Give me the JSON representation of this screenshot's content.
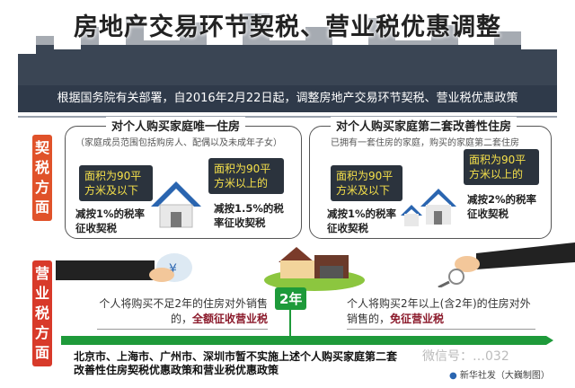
{
  "title": "房地产交易环节契税、营业税优惠调整",
  "banner": "根据国务院有关部署，自2016年2月22日起，调整房地产交易环节契税、营业税优惠政策",
  "deed_tax": {
    "label": [
      "契",
      "税",
      "方",
      "面"
    ],
    "first_home": {
      "heading": "对个人购买家庭唯一住房",
      "note": "（家庭成员范围包括购房人、配偶以及未成年子女）",
      "small": {
        "area": "面积为90平方米及以下",
        "rule": "减按1%的税率征收契税"
      },
      "large": {
        "area": "面积为90平方米以上的",
        "rule": "减按1.5%的税率征收契税"
      }
    },
    "second_home": {
      "heading": "对个人购买家庭第二套改善性住房",
      "note": "已拥有一套住房的家庭，购买的家庭第二套住房",
      "small": {
        "area": "面积为90平方米及以下",
        "rule": "减按1%的税率征收契税"
      },
      "large": {
        "area": "面积为90平方米以上的",
        "rule": "减按2%的税率征收契税"
      }
    }
  },
  "business_tax": {
    "label": [
      "营",
      "业",
      "税",
      "方",
      "面"
    ],
    "threshold": "2年",
    "under": {
      "text": "个人将购买不足2年的住房对外销售的，",
      "emphasis": "全额征收营业税"
    },
    "over": {
      "text": "个人将购买2年以上(含2年)的住房对外销售的，",
      "emphasis": "免征营业税"
    }
  },
  "footnote": "北京市、上海市、广州市、深圳市暂不实施上述个人购买家庭第二套改善性住房契税优惠政策和营业税优惠政策",
  "credit": "新华社发（大巍制图）",
  "watermark": "微信号：…032",
  "colors": {
    "banner": "#2f3a4a",
    "deed_label": "#e0522a",
    "business_label": "#d83a2a",
    "timeline": "#1e9a3a",
    "bubble_text": "#f5e04a",
    "emphasis": "#8b1a2b"
  }
}
